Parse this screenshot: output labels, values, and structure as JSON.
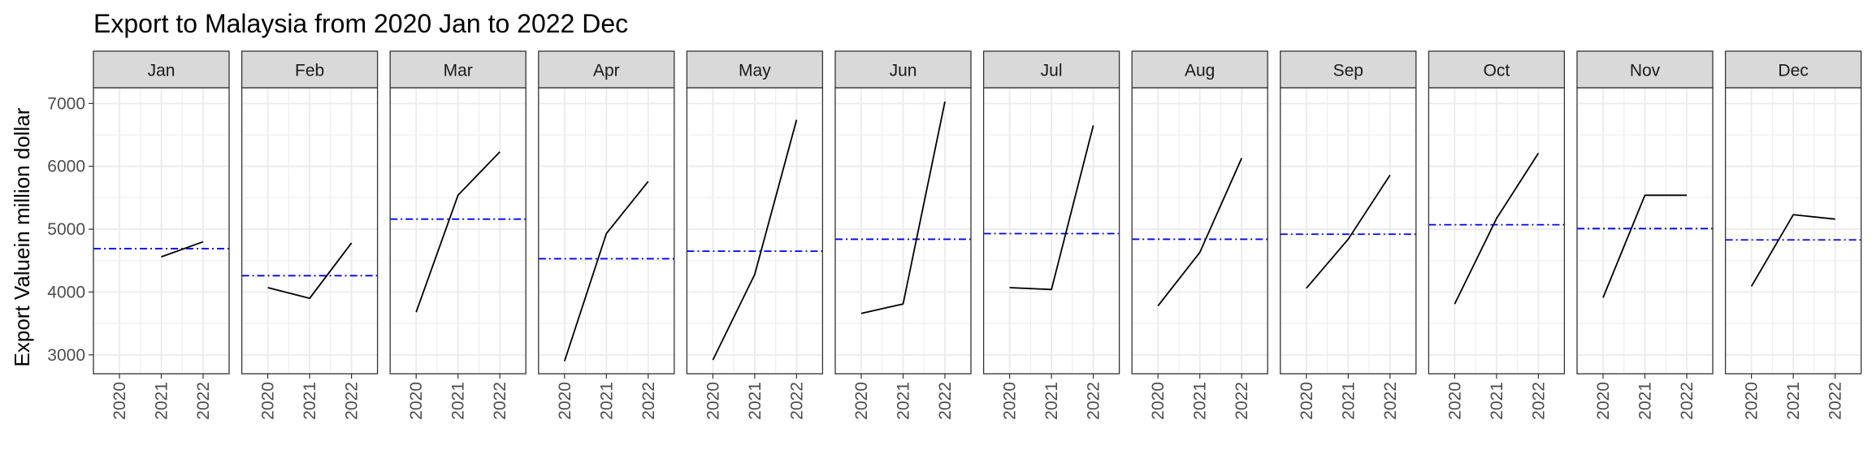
{
  "chart_data": {
    "type": "line",
    "title": "Export to Malaysia from 2020 Jan to 2022 Dec",
    "xlabel": "",
    "ylabel": "Export Valuein million dollar",
    "x": [
      "2020",
      "2021",
      "2022"
    ],
    "yticks": [
      3000,
      4000,
      5000,
      6000,
      7000
    ],
    "ylim": [
      2700,
      7250
    ],
    "grid": true,
    "legend": "none",
    "colors": {
      "series_line": "#000000",
      "mean_line": "#0000ff",
      "strip_fill": "#d9d9d9",
      "panel_border": "#333333",
      "grid": "#ebebeb"
    },
    "panels": [
      {
        "month": "Jan",
        "values": [
          null,
          4560,
          4800
        ],
        "mean": 4690
      },
      {
        "month": "Feb",
        "values": [
          4070,
          3900,
          4780
        ],
        "mean": 4260
      },
      {
        "month": "Mar",
        "values": [
          3680,
          5540,
          6230
        ],
        "mean": 5160
      },
      {
        "month": "Apr",
        "values": [
          2900,
          4930,
          5760
        ],
        "mean": 4530
      },
      {
        "month": "May",
        "values": [
          2920,
          4280,
          6740
        ],
        "mean": 4650
      },
      {
        "month": "Jun",
        "values": [
          3660,
          3810,
          7030
        ],
        "mean": 4840
      },
      {
        "month": "Jul",
        "values": [
          4070,
          4040,
          6650
        ],
        "mean": 4930
      },
      {
        "month": "Aug",
        "values": [
          3780,
          4630,
          6130
        ],
        "mean": 4840
      },
      {
        "month": "Sep",
        "values": [
          4060,
          4840,
          5860
        ],
        "mean": 4920
      },
      {
        "month": "Oct",
        "values": [
          3810,
          5170,
          6210
        ],
        "mean": 5070
      },
      {
        "month": "Nov",
        "values": [
          3910,
          5540,
          5540
        ],
        "mean": 5010
      },
      {
        "month": "Dec",
        "values": [
          4090,
          5230,
          5160
        ],
        "mean": 4830
      }
    ]
  }
}
